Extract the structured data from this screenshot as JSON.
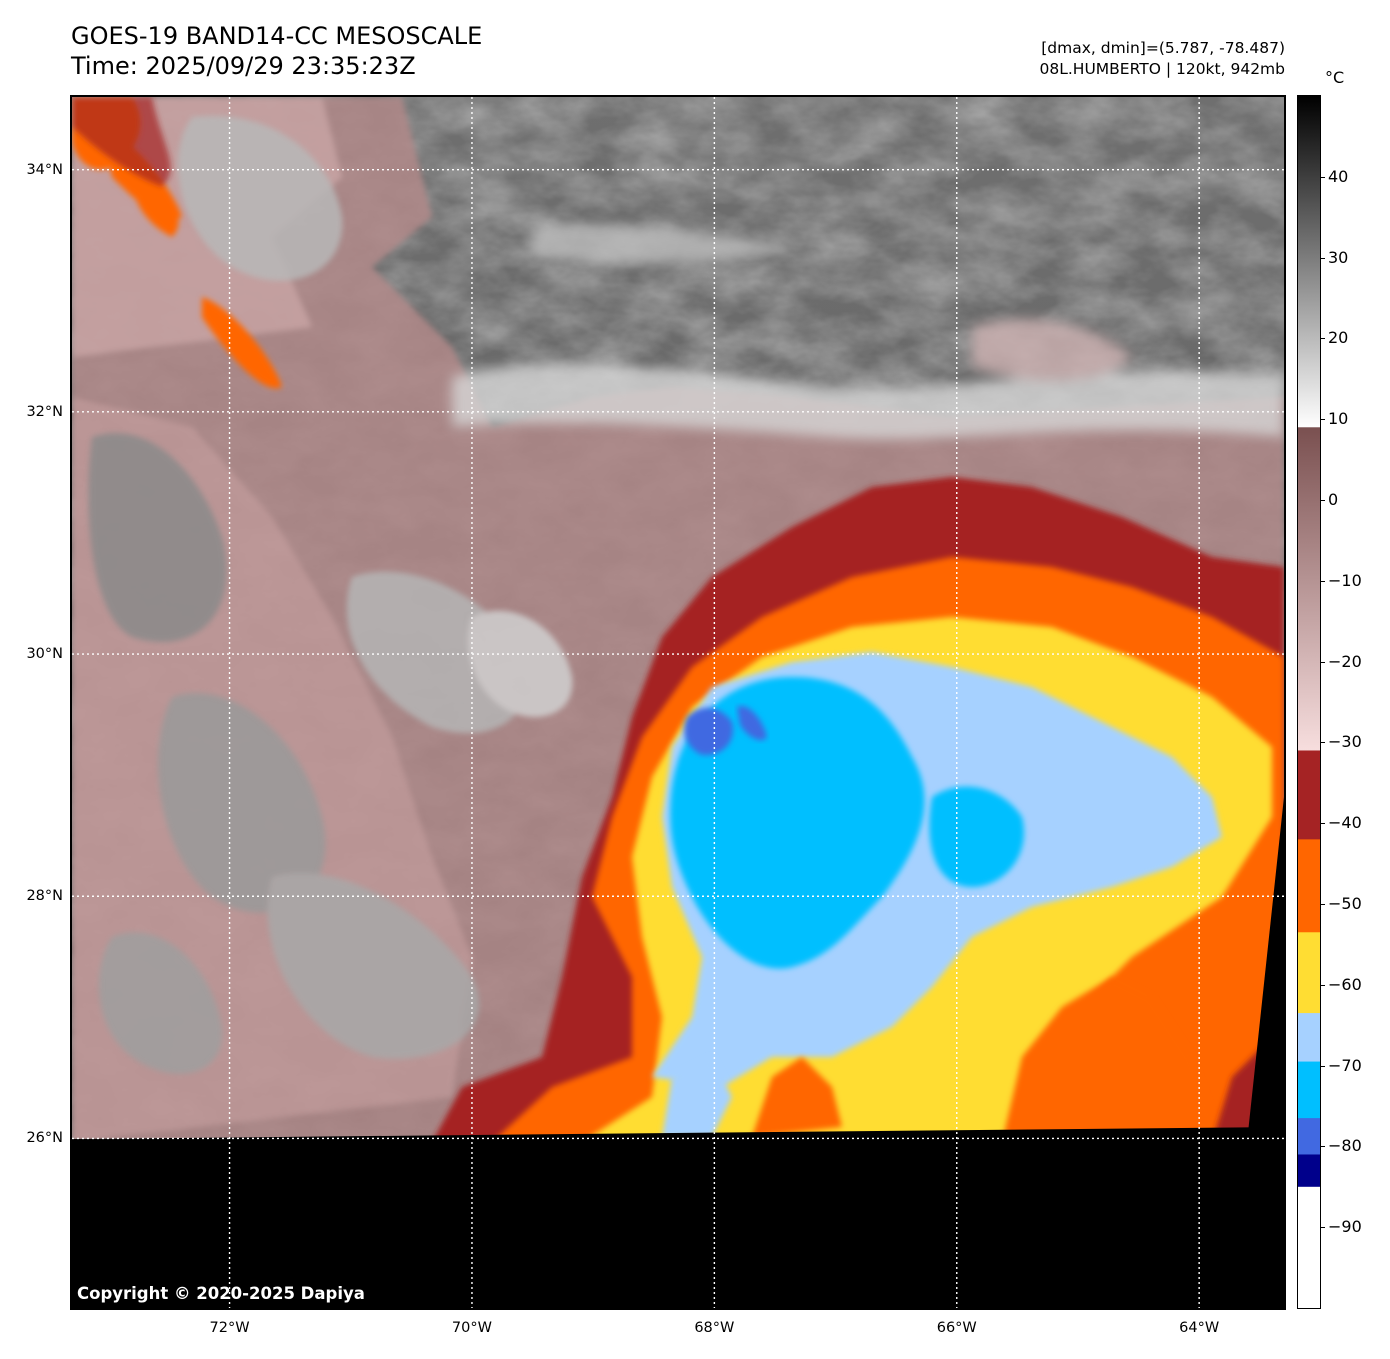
{
  "header": {
    "title_line1": "GOES-19 BAND14-CC MESOSCALE",
    "title_line2": "Time: 2025/09/29 23:35:23Z",
    "info_line1": "[dmax, dmin]=(5.787, -78.487)",
    "info_line2": "08L.HUMBERTO | 120kt, 942mb"
  },
  "map": {
    "extent": {
      "lon_min": -73.3,
      "lon_max": -63.3,
      "lat_min": 24.6,
      "lat_max": 34.6
    },
    "gridlines": "dotted white",
    "no_data_region": "black below 26°N",
    "storm_center": {
      "lon": -68.1,
      "lat": 29.4
    },
    "lat_ticks": [
      {
        "value": 34,
        "label": "34°N"
      },
      {
        "value": 32,
        "label": "32°N"
      },
      {
        "value": 30,
        "label": "30°N"
      },
      {
        "value": 28,
        "label": "28°N"
      },
      {
        "value": 26,
        "label": "26°N"
      }
    ],
    "lon_ticks": [
      {
        "value": -72,
        "label": "72°W"
      },
      {
        "value": -70,
        "label": "70°W"
      },
      {
        "value": -68,
        "label": "68°W"
      },
      {
        "value": -66,
        "label": "66°W"
      },
      {
        "value": -64,
        "label": "64°W"
      }
    ],
    "copyright": "Copyright © 2020-2025 Dapiya"
  },
  "colorbar": {
    "unit": "°C",
    "range": [
      -100,
      50
    ],
    "tick_labels": [
      {
        "value": 40,
        "label": "40"
      },
      {
        "value": 30,
        "label": "30"
      },
      {
        "value": 20,
        "label": "20"
      },
      {
        "value": 10,
        "label": "10"
      },
      {
        "value": 0,
        "label": "0"
      },
      {
        "value": -10,
        "label": "−10"
      },
      {
        "value": -20,
        "label": "−20"
      },
      {
        "value": -30,
        "label": "−30"
      },
      {
        "value": -40,
        "label": "−40"
      },
      {
        "value": -50,
        "label": "−50"
      },
      {
        "value": -60,
        "label": "−60"
      },
      {
        "value": -70,
        "label": "−70"
      },
      {
        "value": -80,
        "label": "−80"
      },
      {
        "value": -90,
        "label": "−90"
      }
    ],
    "segments": [
      {
        "from": 9,
        "to": 50,
        "type": "gradient",
        "colors": [
          "#ffffff",
          "#000000"
        ]
      },
      {
        "from": -31,
        "to": 9,
        "type": "gradient",
        "colors": [
          "#f7dede",
          "#7a5050"
        ]
      },
      {
        "from": -42,
        "to": -31,
        "color": "#a52324"
      },
      {
        "from": -53.5,
        "to": -42,
        "color": "#ff6600"
      },
      {
        "from": -63.5,
        "to": -53.5,
        "color": "#ffdd33"
      },
      {
        "from": -69.5,
        "to": -63.5,
        "color": "#a6d1ff"
      },
      {
        "from": -76.5,
        "to": -69.5,
        "color": "#00bfff"
      },
      {
        "from": -81,
        "to": -76.5,
        "color": "#4169e1"
      },
      {
        "from": -85,
        "to": -81,
        "color": "#00008b"
      },
      {
        "from": -100,
        "to": -85,
        "color": "#ffffff"
      }
    ]
  }
}
